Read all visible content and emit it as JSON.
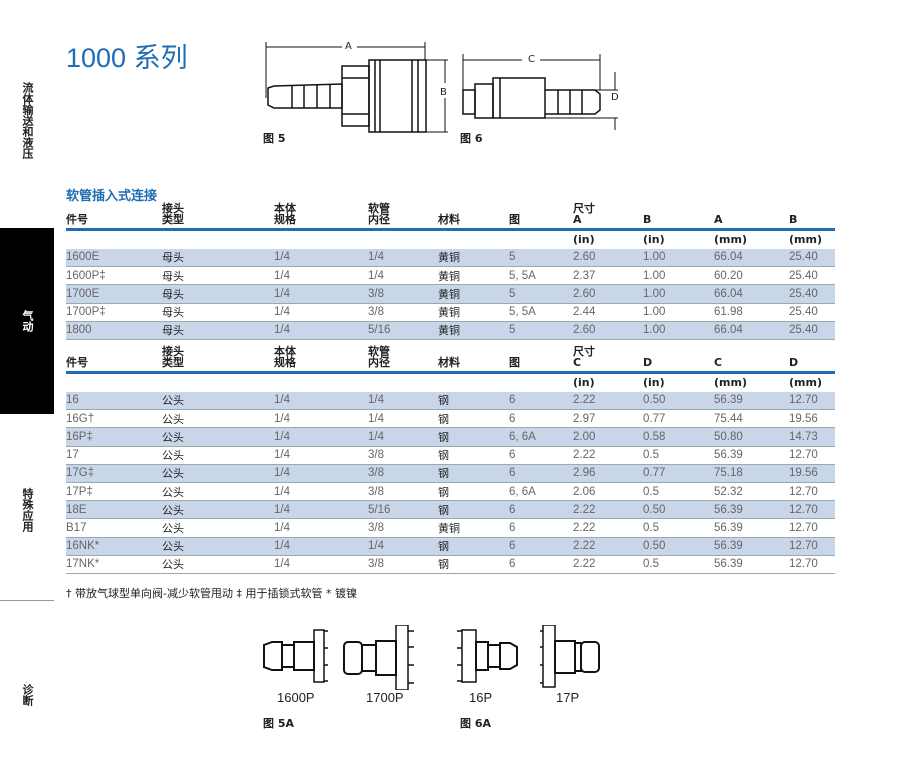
{
  "title": "1000 系列",
  "sidebar": [
    "流体输送和液压",
    "气动",
    "特殊应用",
    "诊断"
  ],
  "figures": {
    "fig5": "图 5",
    "fig6": "图 6",
    "fig5a": "图 5A",
    "fig6a": "图 6A",
    "dimA": "A",
    "dimB": "B",
    "dimC": "C",
    "dimD": "D",
    "parts": [
      "1600P",
      "1700P",
      "16P",
      "17P"
    ]
  },
  "section_title": "软管插入式连接",
  "table1": {
    "headers": [
      [
        "",
        "件号"
      ],
      [
        "接头",
        "类型"
      ],
      [
        "本体",
        "规格"
      ],
      [
        "软管",
        "内径"
      ],
      [
        "",
        "材料"
      ],
      [
        "",
        "图"
      ],
      [
        "尺寸",
        "A"
      ],
      [
        "",
        "B"
      ],
      [
        "",
        "A"
      ],
      [
        "",
        "B"
      ]
    ],
    "units": [
      "",
      "",
      "",
      "",
      "",
      "",
      "(in)",
      "(in)",
      "(mm)",
      "(mm)"
    ],
    "rows": [
      [
        "1600E",
        "母头",
        "1/4",
        "1/4",
        "黄铜",
        "5",
        "2.60",
        "1.00",
        "66.04",
        "25.40"
      ],
      [
        "1600P‡",
        "母头",
        "1/4",
        "1/4",
        "黄铜",
        "5, 5A",
        "2.37",
        "1.00",
        "60.20",
        "25.40"
      ],
      [
        "1700E",
        "母头",
        "1/4",
        "3/8",
        "黄铜",
        "5",
        "2.60",
        "1.00",
        "66.04",
        "25.40"
      ],
      [
        "1700P‡",
        "母头",
        "1/4",
        "3/8",
        "黄铜",
        "5, 5A",
        "2.44",
        "1.00",
        "61.98",
        "25.40"
      ],
      [
        "1800",
        "母头",
        "1/4",
        "5/16",
        "黄铜",
        "5",
        "2.60",
        "1.00",
        "66.04",
        "25.40"
      ]
    ]
  },
  "table2": {
    "headers": [
      [
        "",
        "件号"
      ],
      [
        "接头",
        "类型"
      ],
      [
        "本体",
        "规格"
      ],
      [
        "软管",
        "内径"
      ],
      [
        "",
        "材料"
      ],
      [
        "",
        "图"
      ],
      [
        "尺寸",
        "C"
      ],
      [
        "",
        "D"
      ],
      [
        "",
        "C"
      ],
      [
        "",
        "D"
      ]
    ],
    "units": [
      "",
      "",
      "",
      "",
      "",
      "",
      "(in)",
      "(in)",
      "(mm)",
      "(mm)"
    ],
    "rows": [
      [
        "16",
        "公头",
        "1/4",
        "1/4",
        "钢",
        "6",
        "2.22",
        "0.50",
        "56.39",
        "12.70"
      ],
      [
        "16G†",
        "公头",
        "1/4",
        "1/4",
        "钢",
        "6",
        "2.97",
        "0.77",
        "75.44",
        "19.56"
      ],
      [
        "16P‡",
        "公头",
        "1/4",
        "1/4",
        "钢",
        "6, 6A",
        "2.00",
        "0.58",
        "50.80",
        "14.73"
      ],
      [
        "17",
        "公头",
        "1/4",
        "3/8",
        "钢",
        "6",
        "2.22",
        "0.5",
        "56.39",
        "12.70"
      ],
      [
        "17G‡",
        "公头",
        "1/4",
        "3/8",
        "钢",
        "6",
        "2.96",
        "0.77",
        "75.18",
        "19.56"
      ],
      [
        "17P‡",
        "公头",
        "1/4",
        "3/8",
        "钢",
        "6, 6A",
        "2.06",
        "0.5",
        "52.32",
        "12.70"
      ],
      [
        "18E",
        "公头",
        "1/4",
        "5/16",
        "钢",
        "6",
        "2.22",
        "0.50",
        "56.39",
        "12.70"
      ],
      [
        "B17",
        "公头",
        "1/4",
        "3/8",
        "黄铜",
        "6",
        "2.22",
        "0.5",
        "56.39",
        "12.70"
      ],
      [
        "16NK*",
        "公头",
        "1/4",
        "1/4",
        "钢",
        "6",
        "2.22",
        "0.50",
        "56.39",
        "12.70"
      ],
      [
        "17NK*",
        "公头",
        "1/4",
        "3/8",
        "钢",
        "6",
        "2.22",
        "0.5",
        "56.39",
        "12.70"
      ]
    ]
  },
  "footnote": "† 带放气球型单向阀-减少软管甩动   ‡ 用于插锁式软管   * 镀镍",
  "colors": {
    "accent": "#1f6db3",
    "row_shade": "#c9d6ea"
  }
}
